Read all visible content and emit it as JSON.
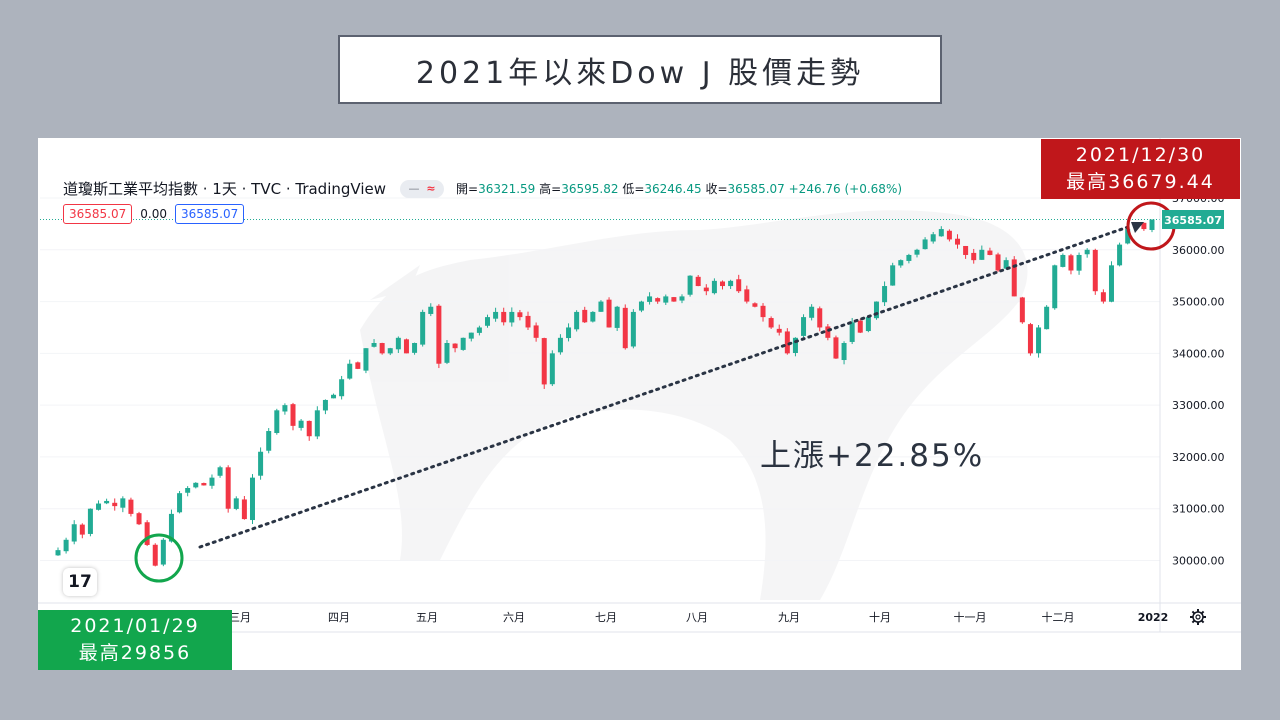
{
  "title": "2021年以來Dow J 股價走勢",
  "legend": {
    "symbol": "道瓊斯工業平均指數 · 1天 · TVC · TradingView",
    "pill_dash": "—",
    "pill_wave": "≈",
    "open_label": "開=",
    "open_value": "36321.59",
    "high_label": "高=",
    "high_value": "36595.82",
    "low_label": "低=",
    "low_value": "36246.45",
    "close_label": "收=",
    "close_value": "36585.07",
    "change": "+246.76 (+0.68%)"
  },
  "value_boxes": {
    "left": "36585.07",
    "mid": "0.00",
    "right": "36585.07"
  },
  "logo_text": "17",
  "badge_end": {
    "date": "2021/12/30",
    "high": "最高36679.44"
  },
  "badge_start": {
    "date": "2021/01/29",
    "high": "最高29856"
  },
  "gain_text": "上漲+22.85%",
  "settings_icon": "gear-icon",
  "colors": {
    "up": "#22ab94",
    "down": "#f23645",
    "end_badge": "#c0171b",
    "start_badge": "#12a64d",
    "trend": "#2a3444"
  },
  "chart_data": {
    "type": "candlestick",
    "ylim": [
      29600,
      37100
    ],
    "y_ticks": [
      "37000.00",
      "36000.00",
      "35000.00",
      "34000.00",
      "33000.00",
      "32000.00",
      "31000.00",
      "30000.00"
    ],
    "y_tick_values": [
      37000,
      36000,
      35000,
      34000,
      33000,
      32000,
      31000,
      30000
    ],
    "x_month_labels": [
      "三月",
      "四月",
      "五月",
      "六月",
      "七月",
      "八月",
      "九月",
      "十月",
      "十一月",
      "十二月",
      "2022"
    ],
    "last_price_label": "36585.07",
    "close_path": [
      30200,
      30400,
      30700,
      30500,
      31000,
      31100,
      31150,
      31050,
      31200,
      30900,
      30700,
      30300,
      29900,
      30400,
      30900,
      31300,
      31400,
      31500,
      31450,
      31600,
      31800,
      31000,
      31200,
      30800,
      31600,
      32100,
      32500,
      32900,
      33000,
      32600,
      32700,
      32400,
      32900,
      33100,
      33200,
      33500,
      33800,
      33700,
      34100,
      34200,
      34000,
      34100,
      34300,
      34000,
      34200,
      34800,
      34900,
      33800,
      34200,
      34100,
      34300,
      34400,
      34500,
      34700,
      34800,
      34600,
      34800,
      34700,
      34500,
      34300,
      33400,
      34000,
      34300,
      34500,
      34800,
      34600,
      34800,
      35000,
      34500,
      34900,
      34100,
      34800,
      35000,
      35100,
      35000,
      35100,
      35000,
      35100,
      35500,
      35300,
      35200,
      35400,
      35300,
      35400,
      35200,
      35000,
      34900,
      34700,
      34500,
      34400,
      34000,
      34300,
      34700,
      34900,
      34500,
      34300,
      33900,
      34200,
      34600,
      34400,
      34700,
      35000,
      35300,
      35700,
      35800,
      35900,
      36000,
      36200,
      36300,
      36400,
      36200,
      36100,
      35900,
      35800,
      36000,
      35900,
      35600,
      35800,
      35100,
      34600,
      34000,
      34500,
      34900,
      35700,
      35900,
      35600,
      35900,
      36000,
      35200,
      35000,
      35700,
      36100,
      36400,
      36500,
      36400,
      36585
    ]
  }
}
